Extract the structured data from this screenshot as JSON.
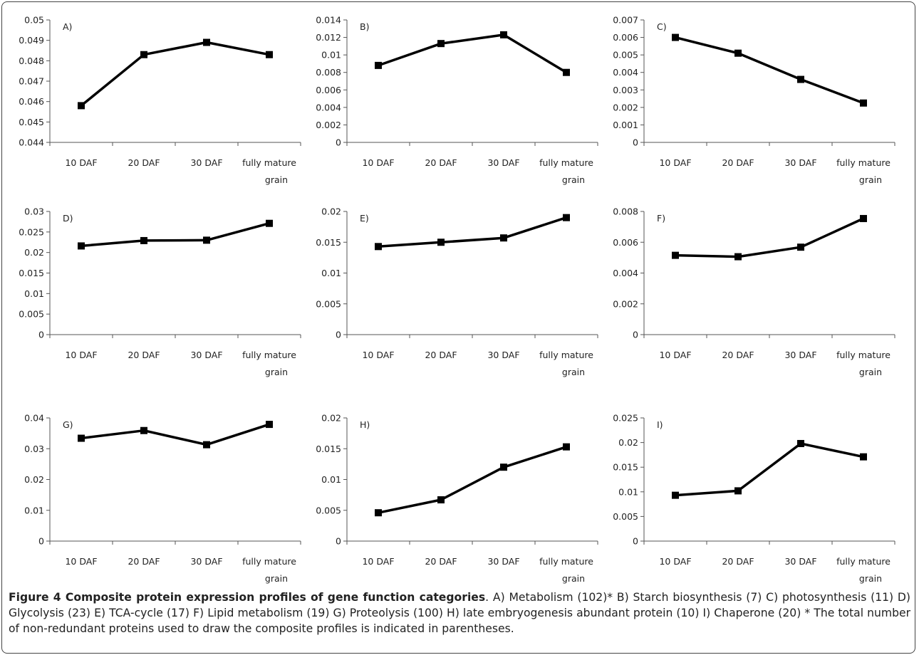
{
  "figure": {
    "caption_title": "Figure 4 Composite protein expression profiles of gene function categories",
    "caption_text": ". A) Metabolism (102)* B) Starch biosynthesis (7) C) photosynthesis (11) D) Glycolysis (23) E) TCA-cycle (17) F) Lipid metabolism (19) G) Proteolysis (100) H) late embryogenesis abundant protein (10) I) Chaperone (20) * The total number of non-redundant proteins used to draw the composite profiles is indicated in parentheses."
  },
  "chart_data": [
    {
      "type": "line",
      "panel": "A)",
      "categories": [
        [
          "10 DAF"
        ],
        [
          "20 DAF"
        ],
        [
          "30 DAF"
        ],
        [
          "fully mature",
          "grain"
        ]
      ],
      "values": [
        0.0458,
        0.0483,
        0.0489,
        0.0483
      ],
      "ylim": [
        0.044,
        0.05
      ],
      "yticks": [
        "0.044",
        "0.045",
        "0.046",
        "0.047",
        "0.048",
        "0.049",
        "0.05"
      ],
      "xlabel": "",
      "ylabel": "",
      "grid": false
    },
    {
      "type": "line",
      "panel": "B)",
      "categories": [
        [
          "10 DAF"
        ],
        [
          "20 DAF"
        ],
        [
          "30 DAF"
        ],
        [
          "fully mature",
          "grain"
        ]
      ],
      "values": [
        0.0088,
        0.0113,
        0.0123,
        0.008
      ],
      "ylim": [
        0,
        0.014
      ],
      "yticks": [
        "0",
        "0.002",
        "0.004",
        "0.006",
        "0.008",
        "0.01",
        "0.012",
        "0.014"
      ],
      "xlabel": "",
      "ylabel": "",
      "grid": false
    },
    {
      "type": "line",
      "panel": "C)",
      "categories": [
        [
          "10 DAF"
        ],
        [
          "20 DAF"
        ],
        [
          "30 DAF"
        ],
        [
          "fully mature",
          "grain"
        ]
      ],
      "values": [
        0.006,
        0.0051,
        0.0036,
        0.00225
      ],
      "ylim": [
        0,
        0.007
      ],
      "yticks": [
        "0",
        "0.001",
        "0.002",
        "0.003",
        "0.004",
        "0.005",
        "0.006",
        "0.007"
      ],
      "xlabel": "",
      "ylabel": "",
      "grid": false
    },
    {
      "type": "line",
      "panel": "D)",
      "categories": [
        [
          "10 DAF"
        ],
        [
          "20 DAF"
        ],
        [
          "30 DAF"
        ],
        [
          "fully mature",
          "grain"
        ]
      ],
      "values": [
        0.0216,
        0.0229,
        0.023,
        0.0271
      ],
      "ylim": [
        0,
        0.03
      ],
      "yticks": [
        "0",
        "0.005",
        "0.01",
        "0.015",
        "0.02",
        "0.025",
        "0.03"
      ],
      "xlabel": "",
      "ylabel": "",
      "grid": false
    },
    {
      "type": "line",
      "panel": "E)",
      "categories": [
        [
          "10 DAF"
        ],
        [
          "20 DAF"
        ],
        [
          "30 DAF"
        ],
        [
          "fully mature",
          "grain"
        ]
      ],
      "values": [
        0.0143,
        0.015,
        0.0157,
        0.019
      ],
      "ylim": [
        0,
        0.02
      ],
      "yticks": [
        "0",
        "0.005",
        "0.01",
        "0.015",
        "0.02"
      ],
      "xlabel": "",
      "ylabel": "",
      "grid": false
    },
    {
      "type": "line",
      "panel": "F)",
      "categories": [
        [
          "10 DAF"
        ],
        [
          "20 DAF"
        ],
        [
          "30 DAF"
        ],
        [
          "fully mature",
          "grain"
        ]
      ],
      "values": [
        0.00515,
        0.00506,
        0.00568,
        0.00754
      ],
      "ylim": [
        0,
        0.008
      ],
      "yticks": [
        "0",
        "0.002",
        "0.004",
        "0.006",
        "0.008"
      ],
      "xlabel": "",
      "ylabel": "",
      "grid": false
    },
    {
      "type": "line",
      "panel": "G)",
      "categories": [
        [
          "10 DAF"
        ],
        [
          "20 DAF"
        ],
        [
          "30 DAF"
        ],
        [
          "fully mature",
          "grain"
        ]
      ],
      "values": [
        0.0334,
        0.0359,
        0.0313,
        0.0379
      ],
      "ylim": [
        0,
        0.04
      ],
      "yticks": [
        "0",
        "0.01",
        "0.02",
        "0.03",
        "0.04"
      ],
      "xlabel": "",
      "ylabel": "",
      "grid": false
    },
    {
      "type": "line",
      "panel": "H)",
      "categories": [
        [
          "10 DAF"
        ],
        [
          "20 DAF"
        ],
        [
          "30 DAF"
        ],
        [
          "fully mature",
          "grain"
        ]
      ],
      "values": [
        0.0046,
        0.0067,
        0.012,
        0.0153
      ],
      "ylim": [
        0,
        0.02
      ],
      "yticks": [
        "0",
        "0.005",
        "0.01",
        "0.015",
        "0.02"
      ],
      "xlabel": "",
      "ylabel": "",
      "grid": false
    },
    {
      "type": "line",
      "panel": "I)",
      "categories": [
        [
          "10 DAF"
        ],
        [
          "20 DAF"
        ],
        [
          "30 DAF"
        ],
        [
          "fully mature",
          "grain"
        ]
      ],
      "values": [
        0.0093,
        0.0102,
        0.0198,
        0.0171
      ],
      "ylim": [
        0,
        0.025
      ],
      "yticks": [
        "0",
        "0.005",
        "0.01",
        "0.015",
        "0.02",
        "0.025"
      ],
      "xlabel": "",
      "ylabel": "",
      "grid": false
    }
  ]
}
